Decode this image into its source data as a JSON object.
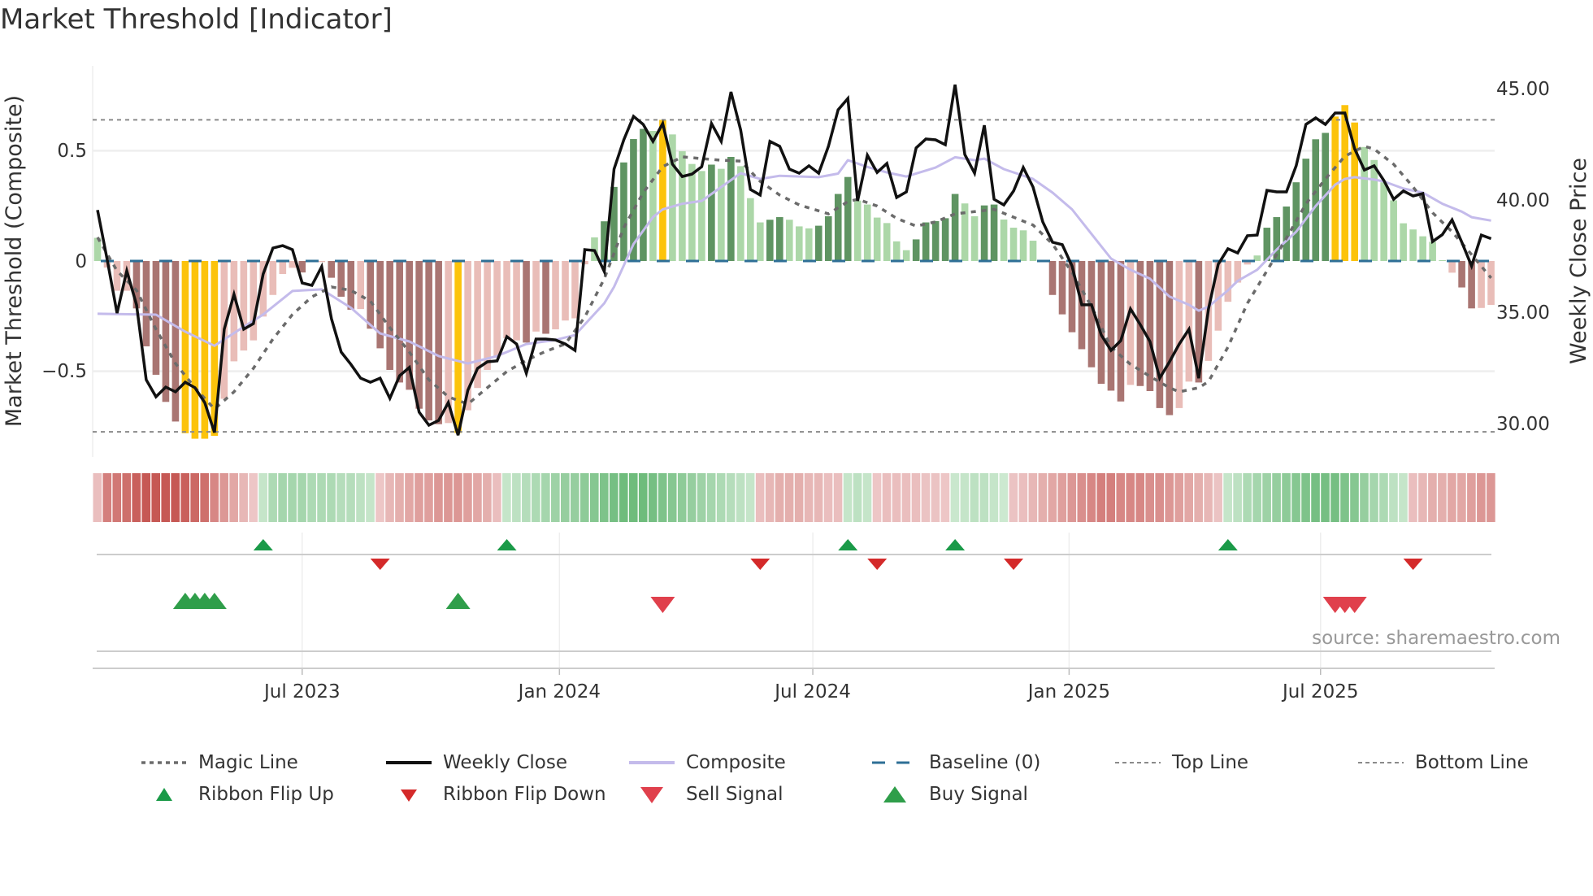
{
  "title": "Market Threshold [Indicator]",
  "chart_data": {
    "type": "bar+line",
    "title": "Market Threshold [Indicator]",
    "ylabel_left": "Market Threshold (Composite)",
    "ylabel_right": "Weekly Close Price",
    "ylim_left": [
      -0.9,
      0.85
    ],
    "ylim_right": [
      28.1,
      46.2
    ],
    "yticks_left": [
      {
        "label": "0.5",
        "value": 0.5
      },
      {
        "label": "0",
        "value": 0
      },
      {
        "label": "−0.5",
        "value": -0.5
      }
    ],
    "yticks_right": [
      {
        "label": "45.00",
        "value": 45
      },
      {
        "label": "40.00",
        "value": 40
      },
      {
        "label": "35.00",
        "value": 35
      },
      {
        "label": "30.00",
        "value": 30
      }
    ],
    "x_unit": "week index",
    "x_ticks": [
      {
        "label": "Jul 2023",
        "week": 21
      },
      {
        "label": "Jan 2024",
        "week": 47.4
      },
      {
        "label": "Jul 2024",
        "week": 73.4
      },
      {
        "label": "Jan 2025",
        "week": 99.7
      },
      {
        "label": "Jul 2025",
        "week": 125.5
      }
    ],
    "top_line": 0.64,
    "bottom_line": -0.775,
    "baseline": 0,
    "composite_bars": [
      0.105,
      -0.03,
      -0.135,
      -0.135,
      -0.215,
      -0.387,
      -0.516,
      -0.639,
      -0.728,
      -0.781,
      -0.806,
      -0.806,
      -0.793,
      -0.625,
      -0.455,
      -0.406,
      -0.36,
      -0.252,
      -0.154,
      -0.059,
      -0.031,
      -0.052,
      -0.005,
      -0.005,
      -0.076,
      -0.162,
      -0.221,
      -0.218,
      -0.307,
      -0.396,
      -0.494,
      -0.551,
      -0.584,
      -0.67,
      -0.723,
      -0.74,
      -0.735,
      -0.78,
      -0.677,
      -0.576,
      -0.494,
      -0.43,
      -0.35,
      -0.36,
      -0.37,
      -0.32,
      -0.33,
      -0.31,
      -0.27,
      -0.26,
      -0.015,
      0.107,
      0.18,
      0.336,
      0.447,
      0.553,
      0.599,
      0.59,
      0.64,
      0.574,
      0.498,
      0.44,
      0.408,
      0.437,
      0.418,
      0.472,
      0.43,
      0.285,
      0.175,
      0.187,
      0.199,
      0.187,
      0.157,
      0.148,
      0.16,
      0.203,
      0.304,
      0.381,
      0.274,
      0.256,
      0.197,
      0.172,
      0.089,
      0.049,
      0.098,
      0.175,
      0.181,
      0.194,
      0.304,
      0.261,
      0.203,
      0.252,
      0.256,
      0.188,
      0.151,
      0.139,
      0.092,
      0.004,
      -0.154,
      -0.242,
      -0.323,
      -0.4,
      -0.482,
      -0.557,
      -0.588,
      -0.637,
      -0.562,
      -0.567,
      -0.59,
      -0.667,
      -0.699,
      -0.667,
      -0.547,
      -0.551,
      -0.453,
      -0.316,
      -0.185,
      -0.098,
      -0.016,
      0.025,
      0.151,
      0.199,
      0.247,
      0.357,
      0.464,
      0.552,
      0.581,
      0.655,
      0.707,
      0.628,
      0.517,
      0.458,
      0.357,
      0.275,
      0.171,
      0.143,
      0.112,
      0.087,
      0.004,
      -0.053,
      -0.12,
      -0.215,
      -0.213,
      -0.199
    ],
    "bar_class_codes": "lpppRRRRRYYYYppppppppRppRRRpRRRRRRRRpYppppppRpRppppl GGGGGlYllllGlGlllGGlllGGGGllllllGGGGGllGGlllllRRRRRRRRpRRRRppRpppppl GGGGGGGYYYlllllllllpRRpp",
    "bar_class_colors": {
      "l": "#acd7a8",
      "G": "#5f9462",
      "p": "#e9bdb8",
      "R": "#a97572",
      "Y": "#fcc30b"
    },
    "weekly_close": [
      39.57,
      37.33,
      34.96,
      36.85,
      35.33,
      31.98,
      31.22,
      31.65,
      31.44,
      31.87,
      31.62,
      30.96,
      29.62,
      34.24,
      35.8,
      34.24,
      34.49,
      36.71,
      37.87,
      37.98,
      37.8,
      36.31,
      36.2,
      37.04,
      34.71,
      33.22,
      32.67,
      32.05,
      31.87,
      32.05,
      31.15,
      32.16,
      32.53,
      30.53,
      29.95,
      30.16,
      30.96,
      29.5,
      31.51,
      32.49,
      32.78,
      32.82,
      33.91,
      33.58,
      32.27,
      33.8,
      33.8,
      33.76,
      33.58,
      33.29,
      37.8,
      37.76,
      36.82,
      41.4,
      42.71,
      43.76,
      43.4,
      42.64,
      43.44,
      41.62,
      41.07,
      41.18,
      41.51,
      43.44,
      42.64,
      44.85,
      43.15,
      40.49,
      40.24,
      42.64,
      42.42,
      41.4,
      41.22,
      41.55,
      41.22,
      42.42,
      44.05,
      44.56,
      39.98,
      42.02,
      41.25,
      41.65,
      40.13,
      40.38,
      42.35,
      42.75,
      42.71,
      42.49,
      45.18,
      42.05,
      41.22,
      43.36,
      40.05,
      39.8,
      40.42,
      41.47,
      40.6,
      39.04,
      38.13,
      38.02,
      37.07,
      35.33,
      35.33,
      33.98,
      33.29,
      33.73,
      35.15,
      34.45,
      33.69,
      32.05,
      32.78,
      33.58,
      34.24,
      32.05,
      35.15,
      37.15,
      37.84,
      37.65,
      38.42,
      38.45,
      40.45,
      40.38,
      40.38,
      41.55,
      43.4,
      43.69,
      43.4,
      43.91,
      43.91,
      42.31,
      41.36,
      41.55,
      40.89,
      40.05,
      40.42,
      40.2,
      40.31,
      38.16,
      38.47,
      39.13,
      38.13,
      37.07,
      38.45,
      38.29
    ],
    "composite_line": [
      [
        0,
        34.93
      ],
      [
        6,
        34.89
      ],
      [
        9,
        34.13
      ],
      [
        12,
        33.5
      ],
      [
        15,
        34.35
      ],
      [
        17,
        34.9
      ],
      [
        20,
        35.95
      ],
      [
        23,
        36.02
      ],
      [
        26,
        35.2
      ],
      [
        29,
        34.05
      ],
      [
        32,
        33.69
      ],
      [
        35,
        33.04
      ],
      [
        38,
        32.71
      ],
      [
        41,
        33.04
      ],
      [
        44,
        33.58
      ],
      [
        47,
        33.76
      ],
      [
        49,
        33.98
      ],
      [
        52,
        35.4
      ],
      [
        53,
        36.13
      ],
      [
        55,
        38.05
      ],
      [
        57,
        39.25
      ],
      [
        58,
        39.6
      ],
      [
        60,
        39.85
      ],
      [
        62,
        39.98
      ],
      [
        64,
        40.6
      ],
      [
        66,
        41.22
      ],
      [
        68,
        40.96
      ],
      [
        70,
        41.1
      ],
      [
        74,
        41.04
      ],
      [
        76,
        41.2
      ],
      [
        77,
        41.8
      ],
      [
        79,
        41.5
      ],
      [
        81,
        41.25
      ],
      [
        83,
        41.07
      ],
      [
        86,
        41.47
      ],
      [
        88,
        41.93
      ],
      [
        90,
        41.8
      ],
      [
        91,
        41.87
      ],
      [
        93,
        41.4
      ],
      [
        96,
        40.96
      ],
      [
        98,
        40.35
      ],
      [
        100,
        39.6
      ],
      [
        102,
        38.5
      ],
      [
        104,
        37.4
      ],
      [
        106,
        36.9
      ],
      [
        108,
        36.5
      ],
      [
        110,
        35.7
      ],
      [
        112,
        35.33
      ],
      [
        113,
        35.07
      ],
      [
        114,
        35.25
      ],
      [
        116,
        35.98
      ],
      [
        117,
        36.4
      ],
      [
        119,
        36.9
      ],
      [
        121,
        37.8
      ],
      [
        123,
        38.6
      ],
      [
        125,
        39.75
      ],
      [
        127,
        40.7
      ],
      [
        128,
        40.96
      ],
      [
        129,
        41.04
      ],
      [
        131,
        40.93
      ],
      [
        132,
        40.85
      ],
      [
        134,
        40.53
      ],
      [
        136,
        40.35
      ],
      [
        138,
        39.85
      ],
      [
        140,
        39.5
      ],
      [
        141,
        39.25
      ],
      [
        143,
        39.1
      ]
    ],
    "magic_line": [
      [
        0,
        38.35
      ],
      [
        2,
        36.85
      ],
      [
        4,
        35.98
      ],
      [
        6,
        34.24
      ],
      [
        8,
        32.71
      ],
      [
        10,
        31.62
      ],
      [
        12,
        30.67
      ],
      [
        14,
        31.44
      ],
      [
        16,
        32.49
      ],
      [
        18,
        33.8
      ],
      [
        20,
        34.9
      ],
      [
        22,
        35.69
      ],
      [
        24,
        36.13
      ],
      [
        26,
        35.98
      ],
      [
        28,
        35.5
      ],
      [
        30,
        34.31
      ],
      [
        32,
        33.22
      ],
      [
        34,
        31.98
      ],
      [
        36,
        31.22
      ],
      [
        38,
        30.89
      ],
      [
        40,
        31.62
      ],
      [
        42,
        32.35
      ],
      [
        44,
        32.85
      ],
      [
        46,
        33.25
      ],
      [
        48,
        33.58
      ],
      [
        50,
        34.78
      ],
      [
        52,
        36.5
      ],
      [
        54,
        38.78
      ],
      [
        56,
        40.35
      ],
      [
        58,
        41.51
      ],
      [
        60,
        41.95
      ],
      [
        62,
        41.87
      ],
      [
        64,
        41.8
      ],
      [
        66,
        41.76
      ],
      [
        68,
        40.85
      ],
      [
        70,
        40.24
      ],
      [
        72,
        39.8
      ],
      [
        75,
        39.4
      ],
      [
        77,
        39.95
      ],
      [
        78,
        40.05
      ],
      [
        80,
        39.75
      ],
      [
        82,
        39.2
      ],
      [
        84,
        38.85
      ],
      [
        86,
        39.04
      ],
      [
        88,
        39.4
      ],
      [
        90,
        39.5
      ],
      [
        92,
        39.6
      ],
      [
        94,
        39.25
      ],
      [
        96,
        38.9
      ],
      [
        98,
        38.05
      ],
      [
        100,
        36.78
      ],
      [
        102,
        35.25
      ],
      [
        104,
        33.44
      ],
      [
        106,
        32.67
      ],
      [
        108,
        32.13
      ],
      [
        110,
        31.62
      ],
      [
        111,
        31.44
      ],
      [
        113,
        31.62
      ],
      [
        114,
        31.9
      ],
      [
        116,
        33.44
      ],
      [
        118,
        35.4
      ],
      [
        120,
        36.85
      ],
      [
        122,
        38.31
      ],
      [
        124,
        39.85
      ],
      [
        126,
        40.96
      ],
      [
        128,
        41.98
      ],
      [
        130,
        42.42
      ],
      [
        131,
        42.3
      ],
      [
        133,
        41.62
      ],
      [
        135,
        40.6
      ],
      [
        137,
        39.45
      ],
      [
        139,
        38.6
      ],
      [
        141,
        37.58
      ],
      [
        143,
        36.53
      ]
    ],
    "ribbon": [
      -0.15,
      -0.55,
      -0.6,
      -0.65,
      -0.75,
      -0.8,
      -0.8,
      -0.8,
      -0.8,
      -0.75,
      -0.7,
      -0.65,
      -0.5,
      -0.4,
      -0.3,
      -0.2,
      -0.1,
      0.15,
      0.3,
      0.35,
      0.35,
      0.35,
      0.3,
      0.3,
      0.3,
      0.25,
      0.25,
      0.2,
      0.15,
      -0.1,
      -0.2,
      -0.25,
      -0.3,
      -0.35,
      -0.35,
      -0.4,
      -0.4,
      -0.4,
      -0.35,
      -0.3,
      -0.25,
      -0.15,
      0.15,
      0.2,
      0.25,
      0.3,
      0.35,
      0.4,
      0.45,
      0.45,
      0.5,
      0.55,
      0.6,
      0.65,
      0.7,
      0.7,
      0.7,
      0.65,
      0.6,
      0.55,
      0.5,
      0.45,
      0.4,
      0.35,
      0.3,
      0.25,
      0.2,
      0.15,
      -0.15,
      -0.2,
      -0.25,
      -0.25,
      -0.25,
      -0.2,
      -0.2,
      -0.15,
      -0.15,
      0.15,
      0.2,
      0.15,
      -0.1,
      -0.15,
      -0.15,
      -0.15,
      -0.15,
      -0.12,
      -0.12,
      -0.1,
      0.12,
      0.15,
      0.2,
      0.2,
      0.15,
      0.1,
      -0.12,
      -0.15,
      -0.2,
      -0.25,
      -0.3,
      -0.35,
      -0.4,
      -0.45,
      -0.5,
      -0.55,
      -0.55,
      -0.5,
      -0.5,
      -0.5,
      -0.45,
      -0.45,
      -0.4,
      -0.35,
      -0.3,
      -0.25,
      -0.2,
      -0.12,
      0.15,
      0.2,
      0.3,
      0.35,
      0.4,
      0.45,
      0.5,
      0.55,
      0.6,
      0.65,
      0.65,
      0.65,
      0.6,
      0.55,
      0.45,
      0.35,
      0.3,
      0.2,
      0.15,
      -0.15,
      -0.2,
      -0.25,
      -0.25,
      -0.3,
      -0.3,
      -0.35,
      -0.4,
      -0.4
    ],
    "ribbon_flip_up": [
      17,
      42,
      77,
      88,
      116
    ],
    "ribbon_flip_down": [
      29,
      68,
      80,
      94,
      135
    ],
    "buy_signals": [
      9,
      10,
      11,
      12,
      37
    ],
    "sell_signals": [
      58,
      127,
      128,
      129
    ],
    "colors": {
      "close": "#111111",
      "composite": "#c4bbeb",
      "magic": "#6b6b6b",
      "baseline": "#2e6f96",
      "threshold": "#8a8a8a",
      "flip_up": "#1a9a48",
      "flip_down": "#d42a2a",
      "sell": "#e0404c",
      "buy": "#2f9e4a"
    }
  },
  "source": "source: sharemaestro.com",
  "legend": [
    {
      "label": "Magic Line"
    },
    {
      "label": "Weekly Close"
    },
    {
      "label": "Composite"
    },
    {
      "label": "Baseline (0)"
    },
    {
      "label": "Top Line"
    },
    {
      "label": "Bottom Line"
    },
    {
      "label": "Ribbon Flip Up"
    },
    {
      "label": "Ribbon Flip Down"
    },
    {
      "label": "Sell Signal"
    },
    {
      "label": "Buy Signal"
    }
  ]
}
